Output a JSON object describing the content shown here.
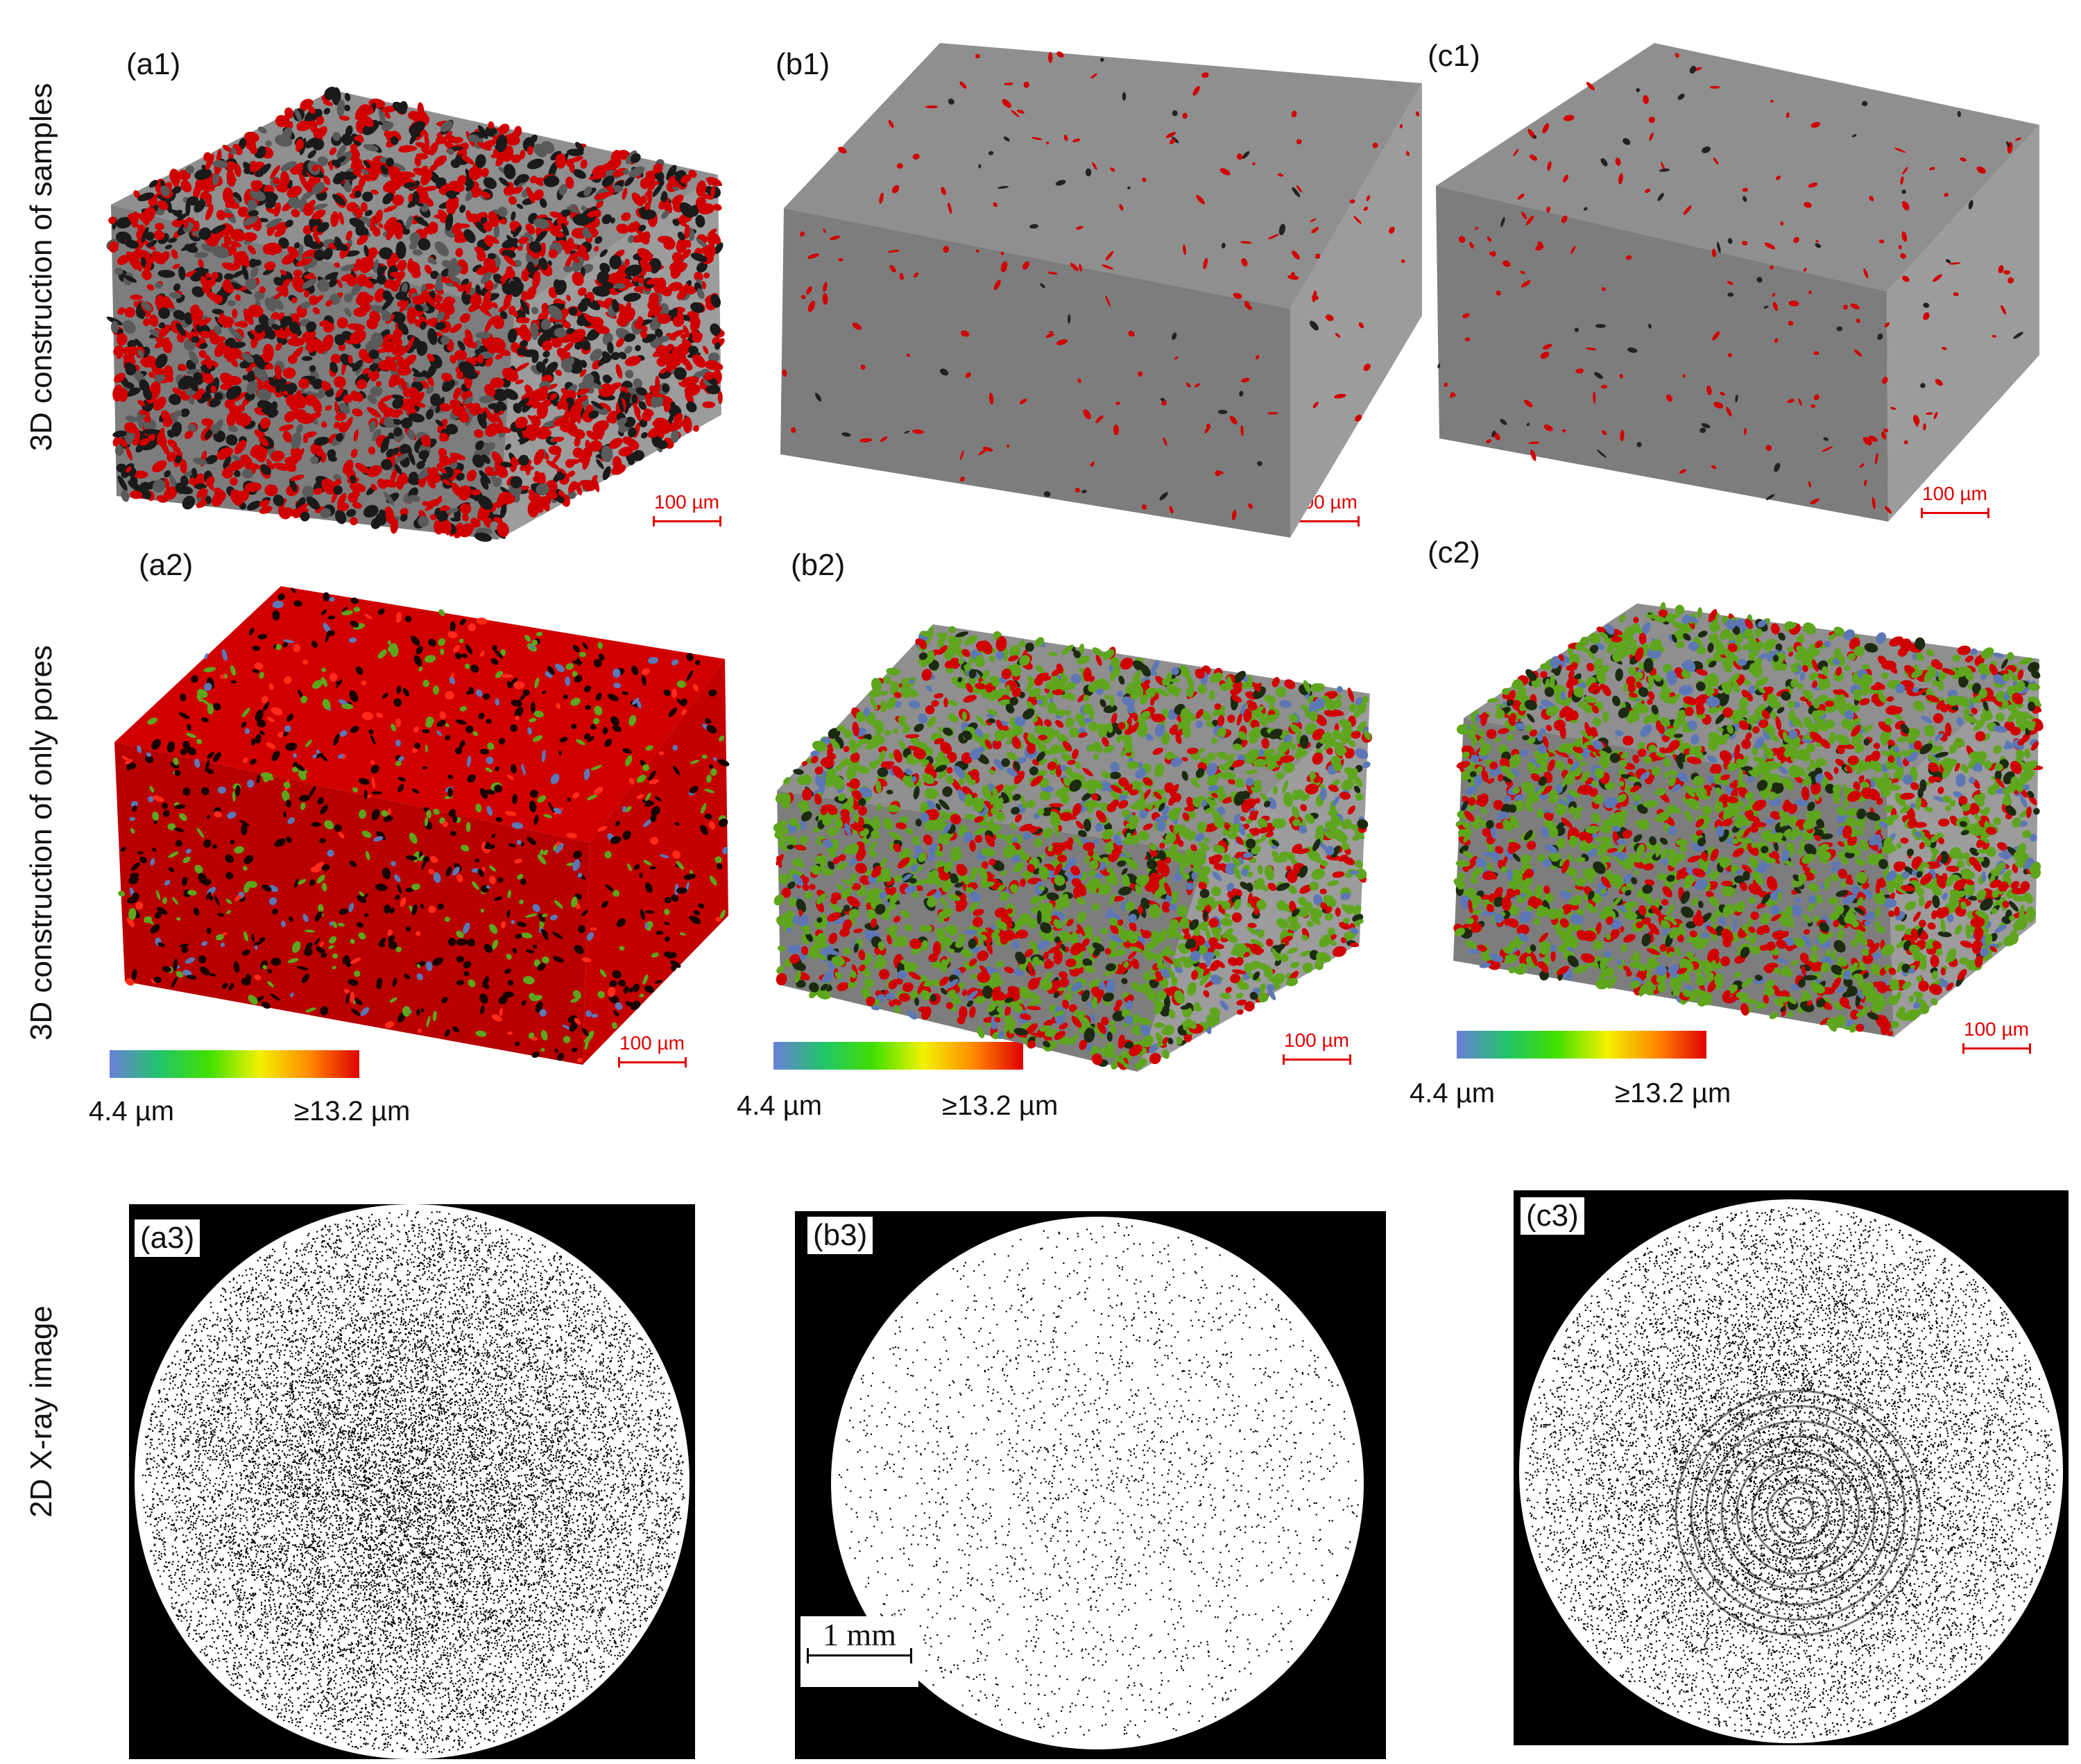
{
  "row_labels": {
    "row1": "3D construction of samples",
    "row2": "3D construction of only pores",
    "row3": "2D X-ray image"
  },
  "panels": {
    "a1": "(a1)",
    "b1": "(b1)",
    "c1": "(c1)",
    "a2": "(a2)",
    "b2": "(b2)",
    "c2": "(c2)",
    "a3": "(a3)",
    "b3": "(b3)",
    "c3": "(c3)"
  },
  "scale_bar_label": "100 µm",
  "colorbar": {
    "min_label": "4.4 µm",
    "max_label": "≥13.2 µm",
    "stops": [
      "#6a7fd8",
      "#21c46a",
      "#41e000",
      "#f2f200",
      "#ff8a00",
      "#e00000"
    ]
  },
  "mm_scale_label": "1 mm",
  "colors": {
    "sample_gray_top": "#8f8f8f",
    "sample_gray_front": "#7d7d7d",
    "sample_gray_side": "#9c9c9c",
    "pore_red": "#d10000",
    "pore_green": "#5fa51e",
    "pore_blue": "#5d77b5"
  }
}
